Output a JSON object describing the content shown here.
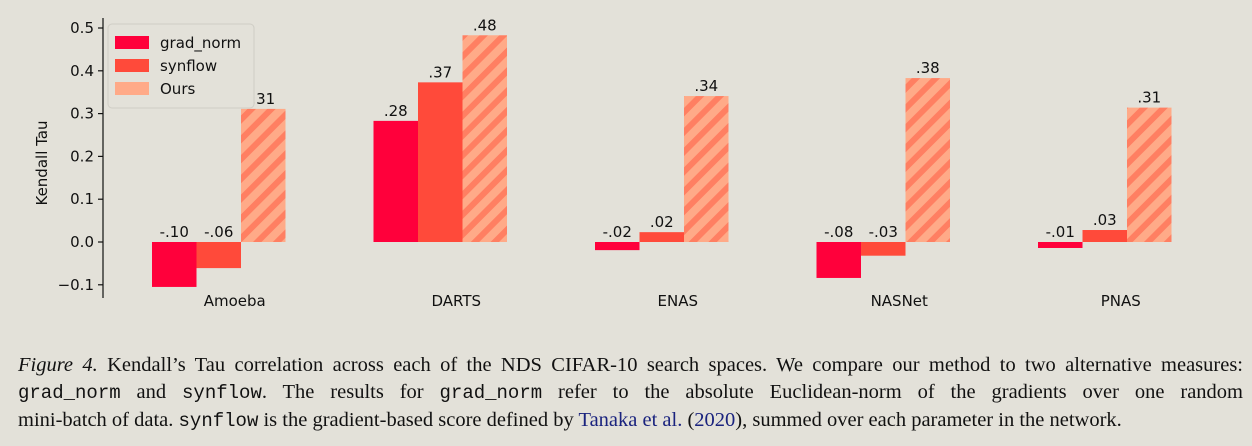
{
  "chart_data": {
    "type": "bar",
    "categories": [
      "Amoeba",
      "DARTS",
      "ENAS",
      "NASNet",
      "PNAS"
    ],
    "series": [
      {
        "name": "grad_norm",
        "color": "#ff003b",
        "hatch": false,
        "values": [
          -0.105,
          0.283,
          -0.019,
          -0.084,
          -0.014
        ],
        "labels": [
          "-.10",
          ".28",
          "-.02",
          "-.08",
          "-.01"
        ]
      },
      {
        "name": "synflow",
        "color": "#ff4a3a",
        "hatch": false,
        "values": [
          -0.061,
          0.373,
          0.023,
          -0.032,
          0.028
        ],
        "labels": [
          "-.06",
          ".37",
          ".02",
          "-.03",
          ".03"
        ]
      },
      {
        "name": "Ours",
        "color": "#ffaa88",
        "hatch": true,
        "hatch_color": "#ff7f62",
        "values": [
          0.311,
          0.483,
          0.341,
          0.383,
          0.314
        ],
        "labels": [
          ".31",
          ".48",
          ".34",
          ".38",
          ".31"
        ]
      }
    ],
    "title": "",
    "xlabel": "",
    "ylabel": "Kendall Tau",
    "ylim": [
      -0.12,
      0.5
    ],
    "yticks": [
      -0.1,
      0.0,
      0.1,
      0.2,
      0.3,
      0.4,
      0.5
    ],
    "ytick_labels": [
      "−0.1",
      "0.0",
      "0.1",
      "0.2",
      "0.3",
      "0.4",
      "0.5"
    ],
    "grid": false,
    "legend_position": "top-left"
  },
  "caption": {
    "figure_label": "Figure 4.",
    "line1_text": " Kendall’s Tau correlation across each of the NDS CIFAR-10 search spaces. We compare our method to two alternative measures:",
    "grad_norm_code": "grad_norm",
    "and_text": " and ",
    "synflow_code": "synflow",
    "line2_mid": ". The results for ",
    "line2_end": " refer to the absolute Euclidean-norm of the gradients over one random",
    "line3_start": "mini-batch of data. ",
    "line3_mid": " is the gradient-based score defined by ",
    "cite_author": "Tanaka et al.",
    "cite_open": " (",
    "cite_year": "2020",
    "cite_close": "), summed over each parameter in the network."
  }
}
